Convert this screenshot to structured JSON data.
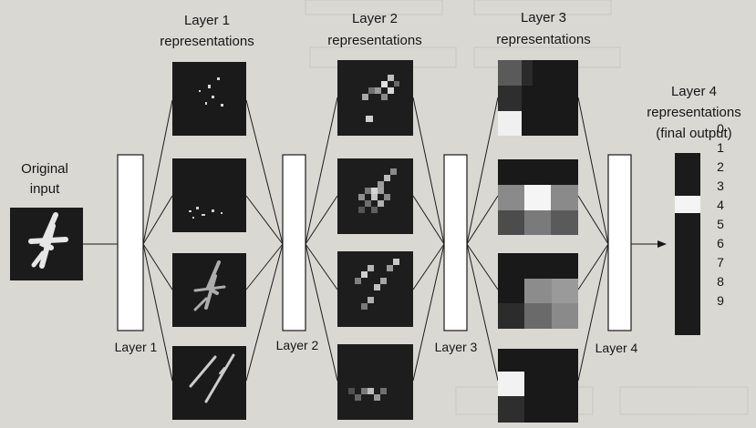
{
  "input": {
    "label_line1": "Original",
    "label_line2": "input"
  },
  "layers": [
    {
      "title_line1": "Layer 1",
      "title_line2": "representations",
      "box_label": "Layer 1"
    },
    {
      "title_line1": "Layer 2",
      "title_line2": "representations",
      "box_label": "Layer 2"
    },
    {
      "title_line1": "Layer 3",
      "title_line2": "representations",
      "box_label": "Layer 3"
    },
    {
      "box_label": "Layer 4"
    }
  ],
  "output": {
    "title_line1": "Layer 4",
    "title_line2": "representations",
    "title_line3": "(final output)",
    "digits": [
      "0",
      "1",
      "2",
      "3",
      "4",
      "5",
      "6",
      "7",
      "8",
      "9"
    ],
    "highlighted_index": 4
  },
  "colors": {
    "paper": "#dad8d3",
    "ink": "#161616",
    "thumb_bg": "#1b1b1b",
    "box_fill": "#ffffff",
    "highlight": "#f4f4f4"
  }
}
